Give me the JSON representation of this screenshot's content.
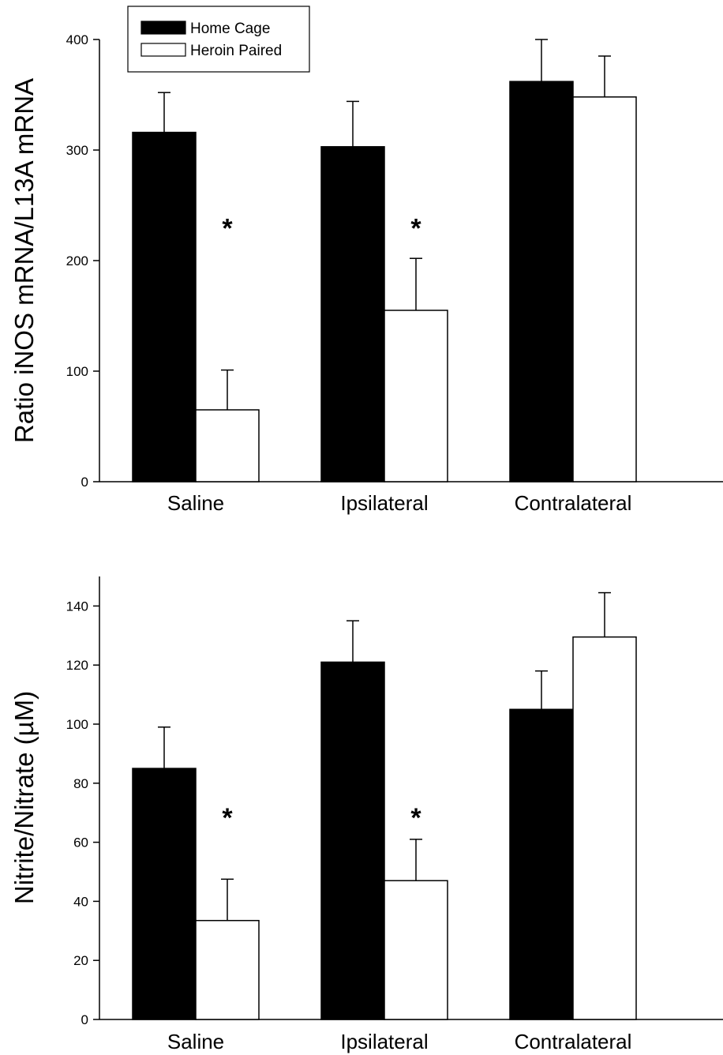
{
  "chart_data": [
    {
      "type": "bar",
      "ylabel": "Ratio iNOS mRNA/L13A mRNA",
      "categories": [
        "Saline",
        "Ipsilateral",
        "Contralateral"
      ],
      "ylim": [
        0,
        400
      ],
      "yticks": [
        0,
        100,
        200,
        300,
        400
      ],
      "legend_position": "top-left",
      "series": [
        {
          "name": "Home Cage",
          "color": "#000000",
          "values": [
            316,
            303,
            362
          ],
          "errors": [
            36,
            41,
            38
          ]
        },
        {
          "name": "Heroin Paired",
          "color": "#ffffff",
          "values": [
            65,
            155,
            348
          ],
          "errors": [
            36,
            47,
            37
          ]
        }
      ],
      "annotations": [
        {
          "text": "*",
          "category": "Saline",
          "y": 234
        },
        {
          "text": "*",
          "category": "Ipsilateral",
          "y": 234
        }
      ]
    },
    {
      "type": "bar",
      "ylabel": "Nitrite/Nitrate (µM)",
      "categories": [
        "Saline",
        "Ipsilateral",
        "Contralateral"
      ],
      "ylim": [
        0,
        150
      ],
      "yticks": [
        0,
        20,
        40,
        60,
        80,
        100,
        120,
        140
      ],
      "series": [
        {
          "name": "Home Cage",
          "color": "#000000",
          "values": [
            85,
            121,
            105
          ],
          "errors": [
            14,
            14,
            13
          ]
        },
        {
          "name": "Heroin Paired",
          "color": "#ffffff",
          "values": [
            33.5,
            47,
            129.5
          ],
          "errors": [
            14,
            14,
            15
          ]
        }
      ],
      "annotations": [
        {
          "text": "*",
          "category": "Saline",
          "y": 70
        },
        {
          "text": "*",
          "category": "Ipsilateral",
          "y": 70
        }
      ]
    }
  ]
}
